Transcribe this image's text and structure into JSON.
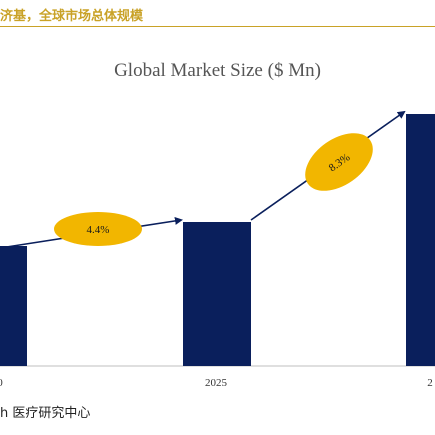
{
  "header": {
    "title": "济基，全球市场总体规模"
  },
  "chart_data": {
    "type": "bar",
    "title": "Global Market Size ($ Mn)",
    "categories": [
      "0",
      "2025",
      "2"
    ],
    "values": [
      40,
      48,
      84
    ],
    "ylim": [
      0,
      100
    ],
    "xlabel": "",
    "ylabel": "",
    "grid": false,
    "annotations": [
      "4.4%",
      "8.3%"
    ]
  },
  "colors": {
    "bar": "#0a1f5c",
    "badge": "#f2b600",
    "header_accent": "#c9a227"
  },
  "footer": {
    "source": "h 医疗研究中心"
  }
}
